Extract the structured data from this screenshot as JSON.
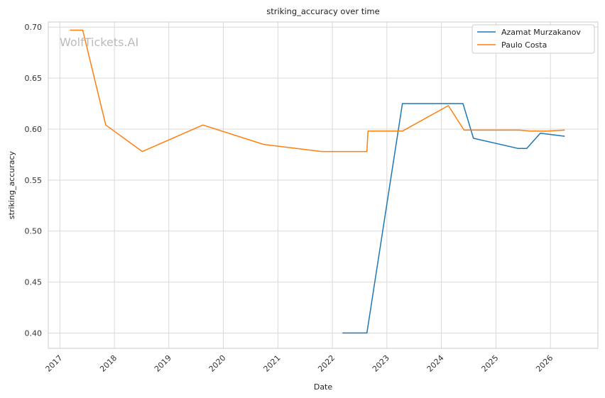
{
  "watermark": "WolfTickets.AI",
  "chart_data": {
    "type": "line",
    "title": "striking_accuracy over time",
    "xlabel": "Date",
    "ylabel": "striking_accuracy",
    "x_ticks": [
      "2017",
      "2018",
      "2019",
      "2020",
      "2021",
      "2022",
      "2023",
      "2024",
      "2025",
      "2026"
    ],
    "y_ticks": [
      "0.40",
      "0.45",
      "0.50",
      "0.55",
      "0.60",
      "0.65",
      "0.70"
    ],
    "xlim": [
      "2016-10-15",
      "2026-11-15"
    ],
    "ylim": [
      0.385,
      0.705
    ],
    "grid": true,
    "legend_position": "top-right",
    "series": [
      {
        "name": "Azamat Murzakanov",
        "color": "#1f77b4",
        "points": [
          [
            "2022-03-12",
            0.4
          ],
          [
            "2022-08-20",
            0.4
          ],
          [
            "2023-04-15",
            0.625
          ],
          [
            "2024-05-25",
            0.625
          ],
          [
            "2024-08-03",
            0.591
          ],
          [
            "2025-05-31",
            0.581
          ],
          [
            "2025-07-26",
            0.581
          ],
          [
            "2025-10-25",
            0.596
          ],
          [
            "2026-04-04",
            0.593
          ]
        ]
      },
      {
        "name": "Paulo Costa",
        "color": "#ff7f0e",
        "points": [
          [
            "2017-03-11",
            0.697
          ],
          [
            "2017-06-03",
            0.697
          ],
          [
            "2017-11-04",
            0.604
          ],
          [
            "2018-07-07",
            0.578
          ],
          [
            "2019-08-17",
            0.604
          ],
          [
            "2020-09-26",
            0.585
          ],
          [
            "2021-10-23",
            0.578
          ],
          [
            "2022-07-30",
            0.578
          ],
          [
            "2022-08-20",
            0.578
          ],
          [
            "2022-08-27",
            0.598
          ],
          [
            "2023-04-15",
            0.598
          ],
          [
            "2024-02-17",
            0.623
          ],
          [
            "2024-06-01",
            0.599
          ],
          [
            "2025-06-07",
            0.599
          ],
          [
            "2025-08-16",
            0.598
          ],
          [
            "2025-12-13",
            0.598
          ],
          [
            "2026-04-04",
            0.599
          ]
        ]
      }
    ]
  }
}
